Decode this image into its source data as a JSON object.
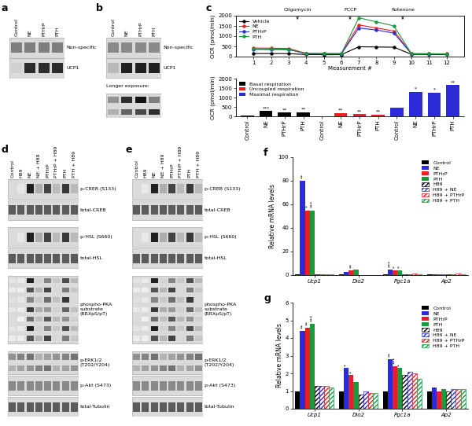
{
  "panels": [
    "a",
    "b",
    "c",
    "d",
    "e",
    "f",
    "g"
  ],
  "blots": [
    {
      "lanes": [
        "Control",
        "NE",
        "PTHrP",
        "PTH"
      ],
      "rows": [
        "Non-specific",
        "UCP1"
      ]
    },
    {
      "lanes": [
        "Control",
        "NE",
        "PTHrP",
        "PTH"
      ],
      "rows": [
        "Non-specific",
        "UCP1"
      ],
      "note": "Longer exposure:"
    },
    {
      "lanes": [
        "Control",
        "H89",
        "NE",
        "NE + H89",
        "PTHrP",
        "PTHrP + H89",
        "PTH",
        "PTH + H89"
      ],
      "rows": [
        "p-CREB (S133)",
        "total-CREB",
        "p-HSL (S660)",
        "total-HSL",
        "phospho-PKA\nsubstrate\n(RRXpS/pT)",
        "p-ERK1/2\n(T202/Y204)",
        "p-Akt (S473)",
        "total-Tubulin"
      ]
    },
    {
      "lanes": [
        "Control",
        "H89",
        "NE",
        "NE + H89",
        "PTHrP",
        "PTHrP + H89",
        "PTH",
        "PTH + H89"
      ],
      "rows": [
        "p-CREB (S133)",
        "total-CREB",
        "p-HSL (S660)",
        "total-HSL",
        "phospho-PKA\nsubstrate\n(RRXpS/pT)",
        "p-ERK1/2\n(T202/Y204)",
        "p-Akt (S473)",
        "total-Tubulin"
      ]
    }
  ],
  "chart_data": [
    {
      "type": "line",
      "x": [
        1,
        2,
        3,
        4,
        5,
        6,
        7,
        8,
        9,
        10,
        11,
        12
      ],
      "xlim": [
        0,
        13
      ],
      "xticks": [
        1,
        2,
        3,
        4,
        5,
        6,
        7,
        8,
        9,
        10,
        11,
        12
      ],
      "ylim": [
        0,
        2000
      ],
      "yticks": [
        0,
        500,
        1000,
        1500,
        2000
      ],
      "x_label": "Measurement #",
      "y_label": "OCR (pmol/min)",
      "marker": "circle",
      "legend": "upper left",
      "series": [
        {
          "name": "Vehicle",
          "color": "#000000",
          "values": [
            150,
            150,
            145,
            100,
            95,
            95,
            480,
            470,
            460,
            110,
            105,
            100
          ]
        },
        {
          "name": "NE",
          "color": "#ee1c24",
          "values": [
            420,
            410,
            400,
            160,
            155,
            150,
            1550,
            1400,
            1250,
            150,
            140,
            135
          ]
        },
        {
          "name": "PTHrP",
          "color": "#2b2bd8",
          "values": [
            350,
            345,
            340,
            140,
            135,
            130,
            1400,
            1300,
            1150,
            130,
            125,
            120
          ]
        },
        {
          "name": "PTH",
          "color": "#1a9a3a",
          "values": [
            380,
            370,
            365,
            150,
            145,
            140,
            1900,
            1700,
            1500,
            140,
            135,
            130
          ]
        }
      ],
      "annotations": [
        {
          "text": "Oligomycin",
          "x": 3.5
        },
        {
          "text": "FCCP",
          "x": 6.5
        },
        {
          "text": "Rotenone",
          "x": 9.5
        }
      ]
    },
    {
      "type": "bar",
      "categories": [
        "Control",
        "NE",
        "PTHrP",
        "PTH",
        "Control",
        "NE",
        "PTHrP",
        "PTH",
        "Control",
        "NE",
        "PTHrP",
        "PTH"
      ],
      "ylim": [
        0,
        2000
      ],
      "yticks": [
        0,
        500,
        1000,
        1500,
        2000
      ],
      "y_label": "OCR (pmol/min)",
      "legend": "upper left",
      "series": [
        {
          "name": "Basal respiration",
          "color": "#000000",
          "values": [
            30,
            280,
            200,
            210,
            null,
            null,
            null,
            null,
            null,
            null,
            null,
            null
          ],
          "stars": [
            null,
            "***",
            "**",
            "**",
            null,
            null,
            null,
            null,
            null,
            null,
            null,
            null
          ]
        },
        {
          "name": "Uncoupled respiration",
          "color": "#ee1c24",
          "values": [
            null,
            null,
            null,
            null,
            15,
            170,
            110,
            100,
            null,
            null,
            null,
            null
          ],
          "stars": [
            null,
            null,
            null,
            null,
            null,
            "**",
            "**",
            "**",
            null,
            null,
            null,
            null
          ]
        },
        {
          "name": "Maximal respiration",
          "color": "#2b2bd8",
          "values": [
            null,
            null,
            null,
            null,
            null,
            null,
            null,
            null,
            450,
            1300,
            1250,
            1650
          ],
          "stars": [
            null,
            null,
            null,
            null,
            null,
            null,
            null,
            null,
            null,
            "*",
            "*",
            "**"
          ]
        }
      ]
    },
    {
      "type": "bar",
      "categories": [
        "Ucp1",
        "Dio2",
        "Pgc1a",
        "Ap2"
      ],
      "ylim": [
        0,
        100
      ],
      "yticks": [
        0,
        20,
        40,
        60,
        80,
        100
      ],
      "y_label": "Relative mRNA levels",
      "legend": "upper right",
      "series": [
        {
          "name": "Control",
          "color": "#000000",
          "values": [
            1,
            1,
            1,
            1
          ],
          "stars": [
            null,
            null,
            null,
            null
          ]
        },
        {
          "name": "NE",
          "color": "#2b2bd8",
          "values": [
            80,
            3,
            5,
            1
          ],
          "stars": [
            "**",
            null,
            "***",
            null
          ]
        },
        {
          "name": "PTHrP",
          "color": "#ee1c24",
          "values": [
            55,
            4,
            4,
            1
          ],
          "stars": [
            "*",
            "**",
            "*",
            null
          ]
        },
        {
          "name": "PTH",
          "color": "#1a9a3a",
          "values": [
            55,
            5,
            4,
            1
          ],
          "stars": [
            "***",
            null,
            "*",
            null
          ]
        },
        {
          "name": "H89",
          "color": "#000000",
          "values": [
            0.5,
            0.3,
            1,
            1
          ],
          "stars": [
            null,
            null,
            null,
            null
          ]
        },
        {
          "name": "H89 + NE",
          "color": "#2b2bd8",
          "values": [
            1,
            0.3,
            1,
            1
          ],
          "stars": [
            null,
            null,
            null,
            null
          ]
        },
        {
          "name": "H89 + PTHrP",
          "color": "#ee1c24",
          "values": [
            1,
            0.3,
            1.1,
            1.1
          ],
          "stars": [
            null,
            null,
            null,
            null
          ]
        },
        {
          "name": "H89 + PTH",
          "color": "#1a9a3a",
          "values": [
            1,
            0.3,
            1,
            1
          ],
          "stars": [
            null,
            null,
            null,
            null
          ]
        }
      ]
    },
    {
      "type": "bar",
      "categories": [
        "Ucp1",
        "Dio2",
        "Pgc1a",
        "Ap2"
      ],
      "ylim": [
        0,
        6
      ],
      "yticks": [
        0,
        1,
        2,
        3,
        4,
        5,
        6
      ],
      "y_label": "Relative mRNA levels",
      "legend": "upper right",
      "series": [
        {
          "name": "Control",
          "color": "#000000",
          "values": [
            1,
            1,
            1,
            1
          ],
          "stars": [
            null,
            null,
            null,
            null
          ]
        },
        {
          "name": "NE",
          "color": "#2b2bd8",
          "values": [
            4.4,
            2.3,
            2.8,
            1.2
          ],
          "stars": [
            "**",
            "*",
            "**",
            null
          ]
        },
        {
          "name": "PTHrP",
          "color": "#ee1c24",
          "values": [
            4.6,
            1.9,
            2.4,
            1
          ],
          "stars": [
            "**",
            "*",
            "***",
            null
          ]
        },
        {
          "name": "PTH",
          "color": "#1a9a3a",
          "values": [
            4.8,
            1.5,
            2.3,
            1.1
          ],
          "stars": [
            "***",
            null,
            "*",
            null
          ]
        },
        {
          "name": "H89",
          "color": "#000000",
          "values": [
            1.3,
            0.8,
            1.9,
            1
          ],
          "stars": [
            null,
            null,
            null,
            null
          ]
        },
        {
          "name": "H89 + NE",
          "color": "#2b2bd8",
          "values": [
            1.3,
            1,
            2.1,
            1.1
          ],
          "stars": [
            null,
            null,
            null,
            null
          ]
        },
        {
          "name": "H89 + PTHrP",
          "color": "#ee1c24",
          "values": [
            1.3,
            0.9,
            2,
            1.1
          ],
          "stars": [
            null,
            null,
            null,
            null
          ]
        },
        {
          "name": "H89 + PTH",
          "color": "#1a9a3a",
          "values": [
            1.2,
            0.9,
            1.7,
            1.1
          ],
          "stars": [
            null,
            null,
            null,
            null
          ]
        }
      ]
    }
  ]
}
